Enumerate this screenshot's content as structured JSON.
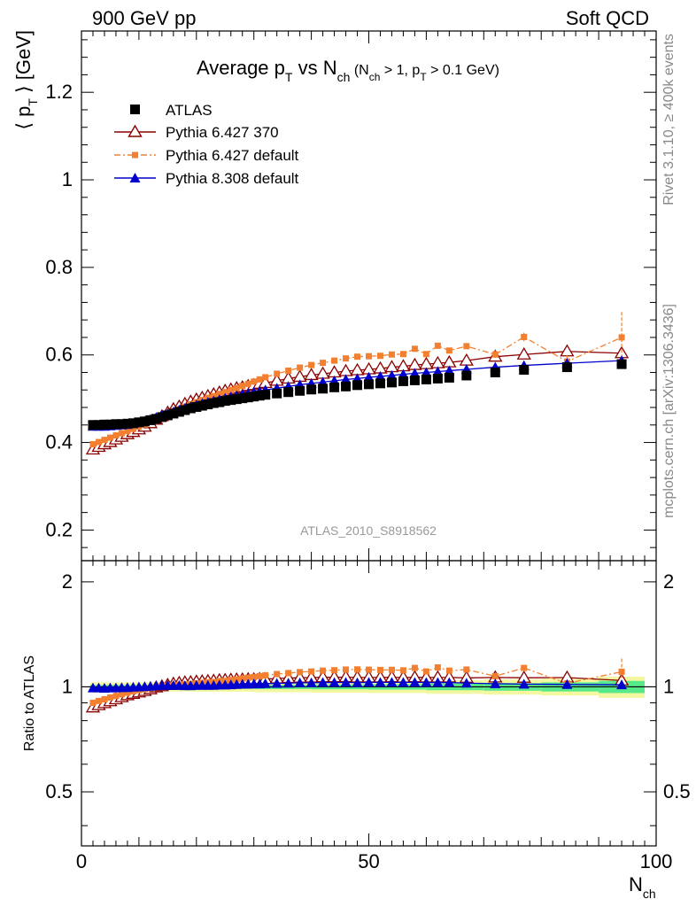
{
  "header": {
    "left": "900 GeV pp",
    "right": "Soft QCD",
    "watermark": "ATLAS_2010_S8918562",
    "side_version": "Rivet 3.1.10, ≥ 400k events",
    "side_source": "mcplots.cern.ch [arXiv:1306.3436]"
  },
  "colors": {
    "atlas": "#000000",
    "py6_370": "#8b0000",
    "py6_default": "#f28030",
    "py8_default": "#0000cc",
    "band_inner": "#57e88a",
    "band_outer": "#f2f7a0"
  },
  "chart_data": [
    {
      "type": "scatter",
      "title": "Average p_T vs N_ch (N_ch > 1, p_T > 0.1 GeV)",
      "title_parts": {
        "main": "Average p",
        "main_sub": "T",
        "vs": " vs N",
        "vs_sub": "ch",
        "cond_open": " (N",
        "cond_sub1": "ch",
        "cond_mid": " > 1, p",
        "cond_sub2": "T",
        "cond_close": " > 0.1 GeV)"
      },
      "ylabel": "⟨ p_T ⟩ [GeV]",
      "ylabel_parts": {
        "open": "⟨ p",
        "sub": "T",
        "close": " ⟩  [GeV]"
      },
      "xlabel": "N_ch",
      "xlim": [
        0,
        100
      ],
      "ylim": [
        0.13,
        1.34
      ],
      "yticks": [
        0.2,
        0.4,
        0.6,
        0.8,
        1,
        1.2
      ],
      "ytick_labels": [
        "0.2",
        "0.4",
        "0.6",
        "0.8",
        "1",
        "1.2"
      ],
      "x": [
        2,
        3,
        4,
        5,
        6,
        7,
        8,
        9,
        10,
        11,
        12,
        13,
        14,
        15,
        16,
        17,
        18,
        19,
        20,
        21,
        22,
        23,
        24,
        25,
        26,
        27,
        28,
        29,
        30,
        31,
        32,
        34,
        36,
        38,
        40,
        42,
        44,
        46,
        48,
        50,
        52,
        54,
        56,
        58,
        60,
        62,
        64,
        67,
        72,
        77,
        84.5,
        94
      ],
      "series": [
        {
          "name": "ATLAS",
          "marker": "square",
          "values": [
            0.44,
            0.44,
            0.441,
            0.441,
            0.442,
            0.442,
            0.443,
            0.444,
            0.446,
            0.448,
            0.451,
            0.454,
            0.458,
            0.462,
            0.466,
            0.47,
            0.474,
            0.478,
            0.481,
            0.484,
            0.487,
            0.49,
            0.492,
            0.495,
            0.497,
            0.499,
            0.501,
            0.503,
            0.505,
            0.507,
            0.509,
            0.512,
            0.515,
            0.518,
            0.521,
            0.523,
            0.526,
            0.528,
            0.531,
            0.533,
            0.535,
            0.537,
            0.54,
            0.542,
            0.544,
            0.546,
            0.548,
            0.553,
            0.56,
            0.566,
            0.572,
            0.579
          ]
        },
        {
          "name": "Pythia 6.427 370",
          "marker": "open-triangle",
          "values": [
            0.384,
            0.39,
            0.396,
            0.401,
            0.407,
            0.413,
            0.419,
            0.424,
            0.43,
            0.436,
            0.444,
            0.452,
            0.46,
            0.468,
            0.476,
            0.482,
            0.488,
            0.493,
            0.498,
            0.502,
            0.506,
            0.51,
            0.514,
            0.518,
            0.521,
            0.524,
            0.526,
            0.529,
            0.531,
            0.534,
            0.536,
            0.541,
            0.546,
            0.55,
            0.554,
            0.557,
            0.56,
            0.563,
            0.565,
            0.567,
            0.569,
            0.572,
            0.574,
            0.577,
            0.579,
            0.581,
            0.583,
            0.587,
            0.596,
            0.601,
            0.608,
            0.604
          ]
        },
        {
          "name": "Pythia 6.427 default",
          "marker": "filled-square-small",
          "dashed": true,
          "values": [
            0.396,
            0.401,
            0.406,
            0.411,
            0.416,
            0.421,
            0.426,
            0.431,
            0.436,
            0.441,
            0.447,
            0.453,
            0.459,
            0.465,
            0.471,
            0.476,
            0.482,
            0.487,
            0.492,
            0.497,
            0.502,
            0.506,
            0.511,
            0.515,
            0.52,
            0.524,
            0.529,
            0.534,
            0.539,
            0.544,
            0.549,
            0.557,
            0.564,
            0.571,
            0.577,
            0.582,
            0.587,
            0.592,
            0.596,
            0.597,
            0.598,
            0.601,
            0.602,
            0.614,
            0.602,
            0.621,
            0.61,
            0.62,
            0.601,
            0.641,
            0.585,
            0.64
          ],
          "errors": [
            0,
            0,
            0,
            0,
            0,
            0,
            0,
            0,
            0,
            0,
            0,
            0,
            0,
            0,
            0,
            0,
            0,
            0,
            0,
            0,
            0,
            0,
            0,
            0,
            0,
            0,
            0,
            0,
            0,
            0,
            0,
            0,
            0,
            0,
            0,
            0,
            0,
            0,
            0,
            0,
            0,
            0,
            0,
            0,
            0,
            0,
            0,
            0.006,
            0.008,
            0.01,
            0.015,
            0.058
          ]
        },
        {
          "name": "Pythia 8.308 default",
          "marker": "filled-triangle",
          "values": [
            0.437,
            0.437,
            0.437,
            0.438,
            0.439,
            0.44,
            0.441,
            0.443,
            0.446,
            0.449,
            0.453,
            0.457,
            0.462,
            0.466,
            0.47,
            0.474,
            0.478,
            0.482,
            0.486,
            0.489,
            0.492,
            0.495,
            0.498,
            0.501,
            0.504,
            0.507,
            0.51,
            0.512,
            0.515,
            0.517,
            0.52,
            0.524,
            0.528,
            0.532,
            0.535,
            0.538,
            0.541,
            0.544,
            0.546,
            0.549,
            0.551,
            0.553,
            0.556,
            0.558,
            0.56,
            0.562,
            0.564,
            0.567,
            0.572,
            0.576,
            0.581,
            0.587
          ]
        }
      ],
      "legend": [
        {
          "label": "ATLAS"
        },
        {
          "label": "Pythia 6.427 370"
        },
        {
          "label": "Pythia 6.427 default"
        },
        {
          "label": "Pythia 8.308 default"
        }
      ],
      "legend_placement": "top-left",
      "grid": false
    },
    {
      "type": "scatter",
      "role": "ratio",
      "ylabel": "Ratio to ATLAS",
      "xlabel": "N_ch",
      "xlabel_parts": {
        "main": "N",
        "sub": "ch"
      },
      "xlim": [
        0,
        100
      ],
      "ylim": [
        0.35,
        2.3
      ],
      "xticks": [
        0,
        50,
        100
      ],
      "xtick_labels": [
        "0",
        "50",
        "100"
      ],
      "yticks": [
        0.5,
        1,
        2
      ],
      "ytick_labels": [
        "0.5",
        "1",
        "2"
      ],
      "reference_line": 1,
      "band": {
        "x_edges": [
          1.5,
          10,
          20,
          30,
          40,
          50,
          60,
          70,
          80,
          90,
          98
        ],
        "inner": [
          0.012,
          0.012,
          0.013,
          0.014,
          0.016,
          0.018,
          0.022,
          0.025,
          0.03,
          0.04
        ],
        "outer": [
          0.03,
          0.03,
          0.032,
          0.035,
          0.038,
          0.04,
          0.045,
          0.05,
          0.055,
          0.07
        ]
      },
      "x": [
        2,
        3,
        4,
        5,
        6,
        7,
        8,
        9,
        10,
        11,
        12,
        13,
        14,
        15,
        16,
        17,
        18,
        19,
        20,
        21,
        22,
        23,
        24,
        25,
        26,
        27,
        28,
        29,
        30,
        31,
        32,
        34,
        36,
        38,
        40,
        42,
        44,
        46,
        48,
        50,
        52,
        54,
        56,
        58,
        60,
        62,
        64,
        67,
        72,
        77,
        84.5,
        94
      ],
      "series": [
        {
          "name": "Pythia 6.427 370",
          "marker": "open-triangle",
          "values": [
            0.873,
            0.886,
            0.898,
            0.909,
            0.921,
            0.934,
            0.946,
            0.955,
            0.964,
            0.973,
            0.984,
            0.996,
            1.004,
            1.013,
            1.021,
            1.026,
            1.03,
            1.031,
            1.035,
            1.037,
            1.039,
            1.041,
            1.045,
            1.046,
            1.048,
            1.05,
            1.05,
            1.052,
            1.051,
            1.053,
            1.053,
            1.057,
            1.06,
            1.062,
            1.063,
            1.065,
            1.065,
            1.066,
            1.064,
            1.064,
            1.064,
            1.065,
            1.063,
            1.065,
            1.064,
            1.064,
            1.064,
            1.061,
            1.064,
            1.062,
            1.063,
            1.043
          ]
        },
        {
          "name": "Pythia 6.427 default",
          "marker": "filled-square-small",
          "dashed": true,
          "values": [
            0.9,
            0.911,
            0.921,
            0.932,
            0.941,
            0.952,
            0.962,
            0.971,
            0.978,
            0.984,
            0.991,
            0.998,
            1.002,
            1.006,
            1.011,
            1.013,
            1.017,
            1.019,
            1.023,
            1.027,
            1.031,
            1.033,
            1.039,
            1.04,
            1.046,
            1.05,
            1.056,
            1.062,
            1.067,
            1.073,
            1.079,
            1.088,
            1.095,
            1.102,
            1.107,
            1.113,
            1.116,
            1.121,
            1.122,
            1.12,
            1.118,
            1.119,
            1.115,
            1.133,
            1.107,
            1.137,
            1.113,
            1.121,
            1.073,
            1.133,
            1.023,
            1.105
          ],
          "errors": [
            0,
            0,
            0,
            0,
            0,
            0,
            0,
            0,
            0,
            0,
            0,
            0,
            0,
            0,
            0,
            0,
            0,
            0,
            0,
            0,
            0,
            0,
            0,
            0,
            0,
            0,
            0,
            0,
            0,
            0,
            0,
            0,
            0,
            0,
            0,
            0,
            0,
            0,
            0,
            0,
            0,
            0,
            0,
            0,
            0,
            0,
            0,
            0.011,
            0.015,
            0.018,
            0.026,
            0.1
          ]
        },
        {
          "name": "Pythia 8.308 default",
          "marker": "filled-triangle",
          "values": [
            0.993,
            0.993,
            0.991,
            0.993,
            0.993,
            0.995,
            0.995,
            0.998,
            1.0,
            1.002,
            1.004,
            1.007,
            1.009,
            1.009,
            1.009,
            1.009,
            1.008,
            1.008,
            1.01,
            1.01,
            1.01,
            1.01,
            1.012,
            1.012,
            1.014,
            1.016,
            1.018,
            1.018,
            1.02,
            1.02,
            1.022,
            1.023,
            1.025,
            1.027,
            1.027,
            1.029,
            1.029,
            1.03,
            1.028,
            1.03,
            1.03,
            1.03,
            1.03,
            1.03,
            1.029,
            1.029,
            1.029,
            1.025,
            1.021,
            1.018,
            1.016,
            1.014
          ]
        }
      ]
    }
  ]
}
